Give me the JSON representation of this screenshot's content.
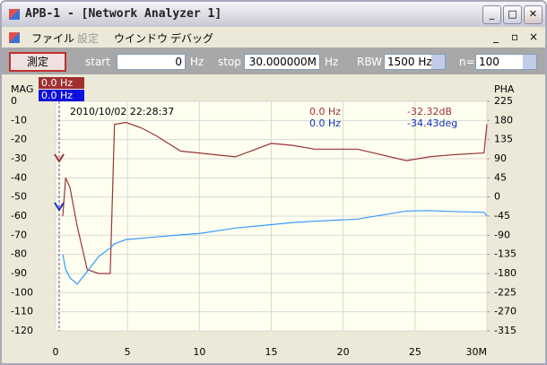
{
  "window": {
    "title": "APB-1 - [Network Analyzer 1]"
  },
  "menu": [
    "ファイル",
    "設定",
    "ウインドウ",
    "デバッグ"
  ],
  "toolbar": {
    "measure_button": "測定",
    "start_label": "start",
    "start_value": "0",
    "start_unit": "Hz",
    "stop_label": "stop",
    "stop_value": "30.000000M",
    "stop_unit": "Hz",
    "rbw_label": "RBW",
    "rbw_value": "1500 Hz",
    "n_label": "n=",
    "n_value": "100"
  },
  "chart_data": {
    "type": "line",
    "y_axis_label": "MAG",
    "y2_axis_label": "PHA",
    "marker_labels": [
      "0.0 Hz",
      "0.0 Hz"
    ],
    "timestamp": "2010/10/02 22:28:37",
    "readouts": [
      {
        "freq": "0.0 Hz",
        "value": "-32.32dB"
      },
      {
        "freq": "0.0 Hz",
        "value": "-34.43deg"
      }
    ],
    "x": [
      0.5,
      0.7,
      1.0,
      1.5,
      2.2,
      3.0,
      3.8,
      4.1,
      4.9,
      6,
      7,
      8.7,
      10,
      12.5,
      15,
      16.5,
      18,
      21,
      24.4,
      26,
      27.5,
      29.8,
      30
    ],
    "series": [
      {
        "color": "#993333",
        "values": [
          -60,
          -40,
          -45,
          -65,
          -88,
          -90,
          -90,
          -12,
          -11,
          -14,
          -18,
          -26,
          -27,
          -29,
          -22,
          -23,
          -25,
          -25,
          -31,
          -29,
          -28,
          -27,
          -12
        ]
      },
      {
        "color": "#3399ff",
        "axis": "y2",
        "values": [
          -135,
          -170,
          -190,
          -205,
          -175,
          -140,
          -120,
          -110,
          -100,
          -97,
          -94,
          -89,
          -86,
          -73,
          -65,
          -60,
          -57,
          -52,
          -33,
          -32,
          -34,
          -36,
          -45
        ]
      }
    ],
    "xlim": [
      0,
      30
    ],
    "xticks": [
      0,
      5,
      10,
      15,
      20,
      25,
      {
        "value": 30,
        "label": "30M"
      }
    ],
    "ylim": [
      -120,
      0
    ],
    "yticks": [
      0,
      -10,
      -20,
      -30,
      -40,
      -50,
      -60,
      -70,
      -80,
      -90,
      -100,
      -110,
      -120
    ],
    "y2lim": [
      -315,
      225
    ],
    "y2ticks": [
      225,
      180,
      135,
      90,
      45,
      0,
      -45,
      -90,
      -135,
      -180,
      -225,
      -270,
      -315
    ],
    "grid": true
  }
}
